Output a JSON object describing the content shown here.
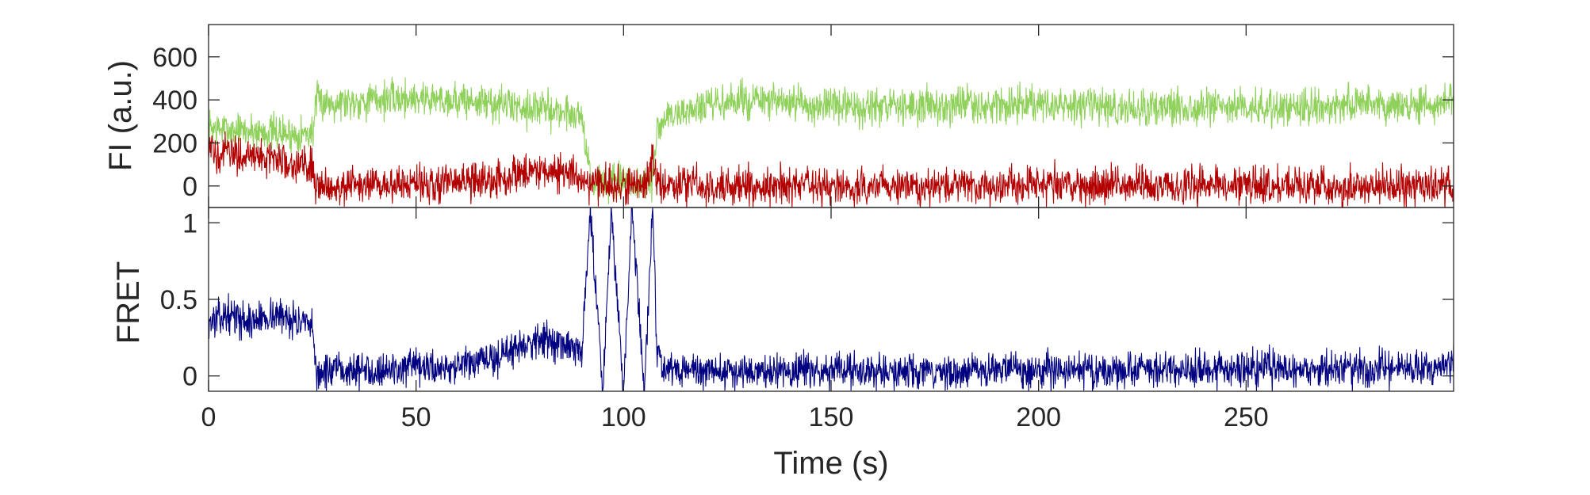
{
  "chart_data": [
    {
      "type": "line",
      "panel": "top",
      "ylabel": "FI (a.u.)",
      "xlabel": "",
      "xlim": [
        0,
        300
      ],
      "ylim": [
        -100,
        750
      ],
      "yticks": [
        0,
        200,
        400,
        600
      ],
      "grid": false,
      "legend": "none",
      "series": [
        {
          "color": "#8fd15a",
          "x": [
            0,
            5,
            10,
            15,
            20,
            25,
            26,
            30,
            40,
            50,
            60,
            70,
            80,
            90,
            92,
            95,
            100,
            105,
            107,
            108,
            110,
            120,
            130,
            140,
            150,
            160,
            170,
            180,
            190,
            200,
            210,
            220,
            230,
            240,
            250,
            260,
            270,
            280,
            290,
            300
          ],
          "values": [
            270,
            260,
            255,
            250,
            240,
            245,
            390,
            390,
            400,
            410,
            400,
            380,
            360,
            330,
            20,
            10,
            15,
            10,
            20,
            250,
            320,
            370,
            400,
            380,
            370,
            360,
            370,
            380,
            370,
            380,
            370,
            360,
            370,
            365,
            370,
            360,
            370,
            380,
            370,
            390
          ]
        },
        {
          "color": "#b30000",
          "x": [
            0,
            5,
            10,
            15,
            20,
            25,
            26,
            30,
            40,
            50,
            60,
            70,
            75,
            80,
            85,
            90,
            92,
            95,
            100,
            105,
            107,
            108,
            110,
            120,
            130,
            140,
            150,
            160,
            170,
            180,
            190,
            200,
            210,
            220,
            230,
            240,
            250,
            260,
            270,
            280,
            290,
            300
          ],
          "values": [
            160,
            150,
            140,
            130,
            110,
            90,
            10,
            0,
            0,
            10,
            15,
            30,
            60,
            80,
            60,
            40,
            15,
            10,
            0,
            5,
            130,
            30,
            10,
            0,
            0,
            5,
            0,
            0,
            0,
            0,
            0,
            5,
            0,
            0,
            5,
            0,
            0,
            5,
            0,
            0,
            0,
            10
          ]
        }
      ]
    },
    {
      "type": "line",
      "panel": "bottom",
      "ylabel": "FRET",
      "xlabel": "Time (s)",
      "xlim": [
        0,
        300
      ],
      "ylim": [
        -0.1,
        1.1
      ],
      "yticks": [
        0,
        0.5,
        1
      ],
      "xticks": [
        0,
        50,
        100,
        150,
        200,
        250
      ],
      "grid": false,
      "legend": "none",
      "series": [
        {
          "color": "#000080",
          "x": [
            0,
            5,
            10,
            15,
            20,
            25,
            26,
            30,
            40,
            50,
            60,
            70,
            75,
            80,
            85,
            90,
            92,
            95,
            97,
            100,
            102,
            105,
            107,
            108,
            110,
            120,
            130,
            140,
            150,
            160,
            170,
            180,
            190,
            200,
            210,
            220,
            230,
            240,
            250,
            260,
            270,
            280,
            290,
            300
          ],
          "values": [
            0.35,
            0.4,
            0.35,
            0.4,
            0.38,
            0.3,
            0.02,
            0.03,
            0.04,
            0.05,
            0.06,
            0.12,
            0.2,
            0.25,
            0.2,
            0.15,
            1.1,
            -0.1,
            1.1,
            -0.1,
            1.1,
            -0.1,
            1.1,
            0.2,
            0.04,
            0.03,
            0.03,
            0.03,
            0.03,
            0.03,
            0.03,
            0.03,
            0.04,
            0.04,
            0.04,
            0.04,
            0.04,
            0.04,
            0.05,
            0.05,
            0.05,
            0.05,
            0.05,
            0.06
          ]
        }
      ]
    }
  ]
}
